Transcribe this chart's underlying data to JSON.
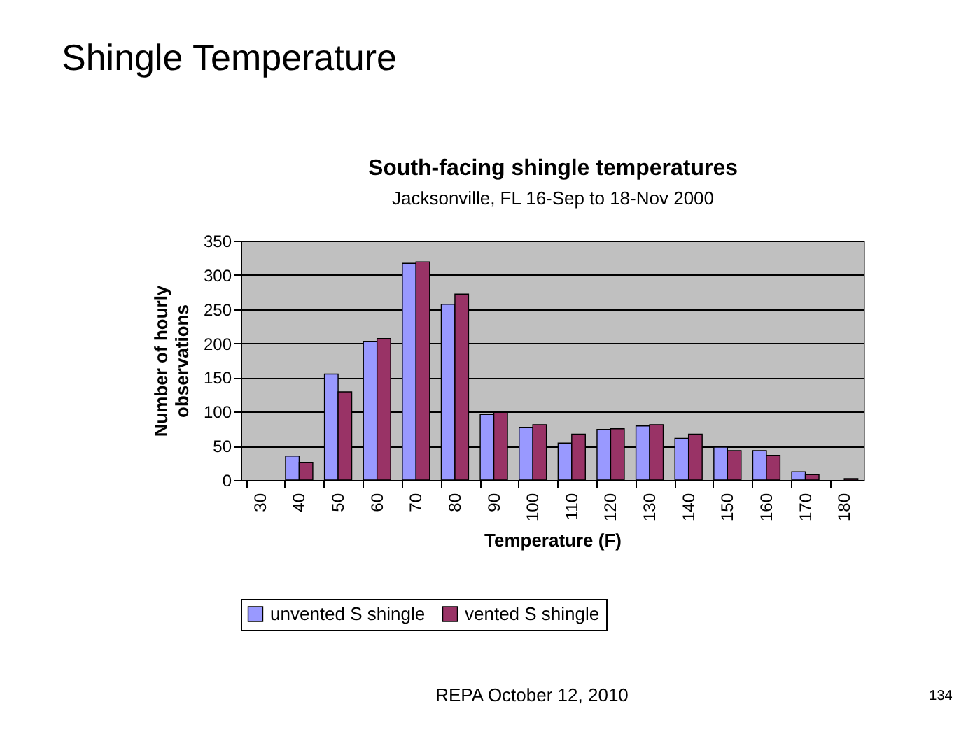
{
  "chart_data": {
    "type": "bar",
    "title": "South-facing shingle temperatures",
    "subtitle": "Jacksonville, FL  16-Sep to 18-Nov 2000",
    "xlabel": "Temperature (F)",
    "ylabel": "Number of hourly observations",
    "categories": [
      "30",
      "40",
      "50",
      "60",
      "70",
      "80",
      "90",
      "100",
      "110",
      "120",
      "130",
      "140",
      "150",
      "160",
      "170",
      "180"
    ],
    "series": [
      {
        "name": "unvented S shingle",
        "color": "#9999ff",
        "values": [
          0,
          35,
          155,
          203,
          317,
          257,
          96,
          77,
          54,
          74,
          79,
          61,
          48,
          43,
          12,
          0
        ]
      },
      {
        "name": "vented S shingle",
        "color": "#993366",
        "values": [
          0,
          26,
          129,
          207,
          319,
          272,
          99,
          81,
          67,
          75,
          81,
          67,
          43,
          36,
          8,
          2
        ]
      }
    ],
    "ylim": [
      0,
      350
    ],
    "yticks": [
      0,
      50,
      100,
      150,
      200,
      250,
      300,
      350
    ],
    "grid": "y",
    "legend": "bottom",
    "annotations": [
      "Shingle Temperature",
      "REPA October 12, 2010",
      "134"
    ]
  }
}
